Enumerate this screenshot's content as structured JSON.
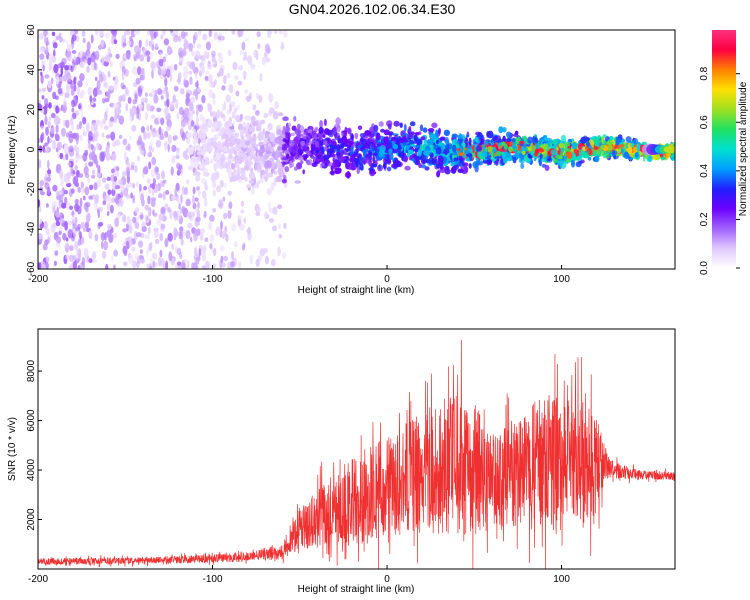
{
  "figure_title": "GN04.2026.102.06.34.E30",
  "colors": {
    "snr_line": "#f03030",
    "colormap": [
      "#ffffff",
      "#e0c8ff",
      "#a060ff",
      "#6a00ff",
      "#2020ff",
      "#00a0ff",
      "#00e0d0",
      "#20e060",
      "#a0e020",
      "#ffe000",
      "#ff8000",
      "#ff0040",
      "#ff3080"
    ]
  },
  "chart_data": [
    {
      "type": "heatmap",
      "title": "",
      "xlabel": "Height of straight line (km)",
      "ylabel": "Frequency (Hz)",
      "xlim": [
        -200,
        165
      ],
      "ylim": [
        -60,
        60
      ],
      "x_ticks": [
        -200,
        -100,
        0,
        100
      ],
      "x_tick_labels": [
        "-200",
        "-100",
        "0",
        "100"
      ],
      "y_ticks": [
        -60,
        -40,
        -20,
        0,
        20,
        40,
        60
      ],
      "y_tick_labels": [
        "-60",
        "-40",
        "-20",
        "0",
        "20",
        "40",
        "60"
      ],
      "grid": false,
      "colorbar": {
        "label": "Normalized spectral amplitude",
        "range": [
          0,
          0.98
        ],
        "ticks": [
          0.0,
          0.2,
          0.4,
          0.6,
          0.8
        ],
        "tick_labels": [
          "0.0",
          "0.2",
          "0.4",
          "0.6",
          "0.8"
        ]
      },
      "description_of_regions": {
        "noise_region_x": [
          -200,
          -57
        ],
        "noise_freq_range": [
          -60,
          60
        ],
        "signal_region_x": [
          -115,
          165
        ],
        "signal_center_freq": 0,
        "signal_halfwidth_hz_start": 18,
        "signal_halfwidth_hz_end": 3,
        "peak_amplitude": 0.95
      }
    },
    {
      "type": "line",
      "title": "",
      "xlabel": "Height of straight line (km)",
      "ylabel": "SNR (10 * v/v)",
      "xlim": [
        -200,
        165
      ],
      "ylim": [
        0,
        9700
      ],
      "x_ticks": [
        -200,
        -100,
        0,
        100
      ],
      "x_tick_labels": [
        "-200",
        "-100",
        "0",
        "100"
      ],
      "y_ticks": [
        2000,
        4000,
        6000,
        8000
      ],
      "y_tick_labels": [
        "2000",
        "4000",
        "6000",
        "8000"
      ],
      "grid": false,
      "series": [
        {
          "name": "SNR",
          "x": [
            -200,
            -150,
            -120,
            -100,
            -80,
            -60,
            -50,
            -40,
            -30,
            -20,
            -10,
            0,
            10,
            20,
            30,
            40,
            50,
            60,
            70,
            80,
            90,
            100,
            110,
            120,
            125,
            130,
            140,
            150,
            165
          ],
          "y_base": [
            300,
            330,
            380,
            420,
            500,
            700,
            1600,
            2000,
            2400,
            2700,
            3000,
            3200,
            3500,
            3800,
            4100,
            4300,
            4000,
            3600,
            3800,
            4100,
            4300,
            4200,
            4400,
            4200,
            4300,
            4000,
            3850,
            3800,
            3750
          ],
          "y_spread": [
            150,
            150,
            170,
            190,
            220,
            350,
            900,
            1300,
            1700,
            2000,
            2200,
            2400,
            2600,
            2800,
            3000,
            3200,
            3000,
            2200,
            2400,
            2800,
            3000,
            3000,
            2800,
            2200,
            700,
            400,
            250,
            200,
            180
          ],
          "y_max": 9700
        }
      ]
    }
  ]
}
